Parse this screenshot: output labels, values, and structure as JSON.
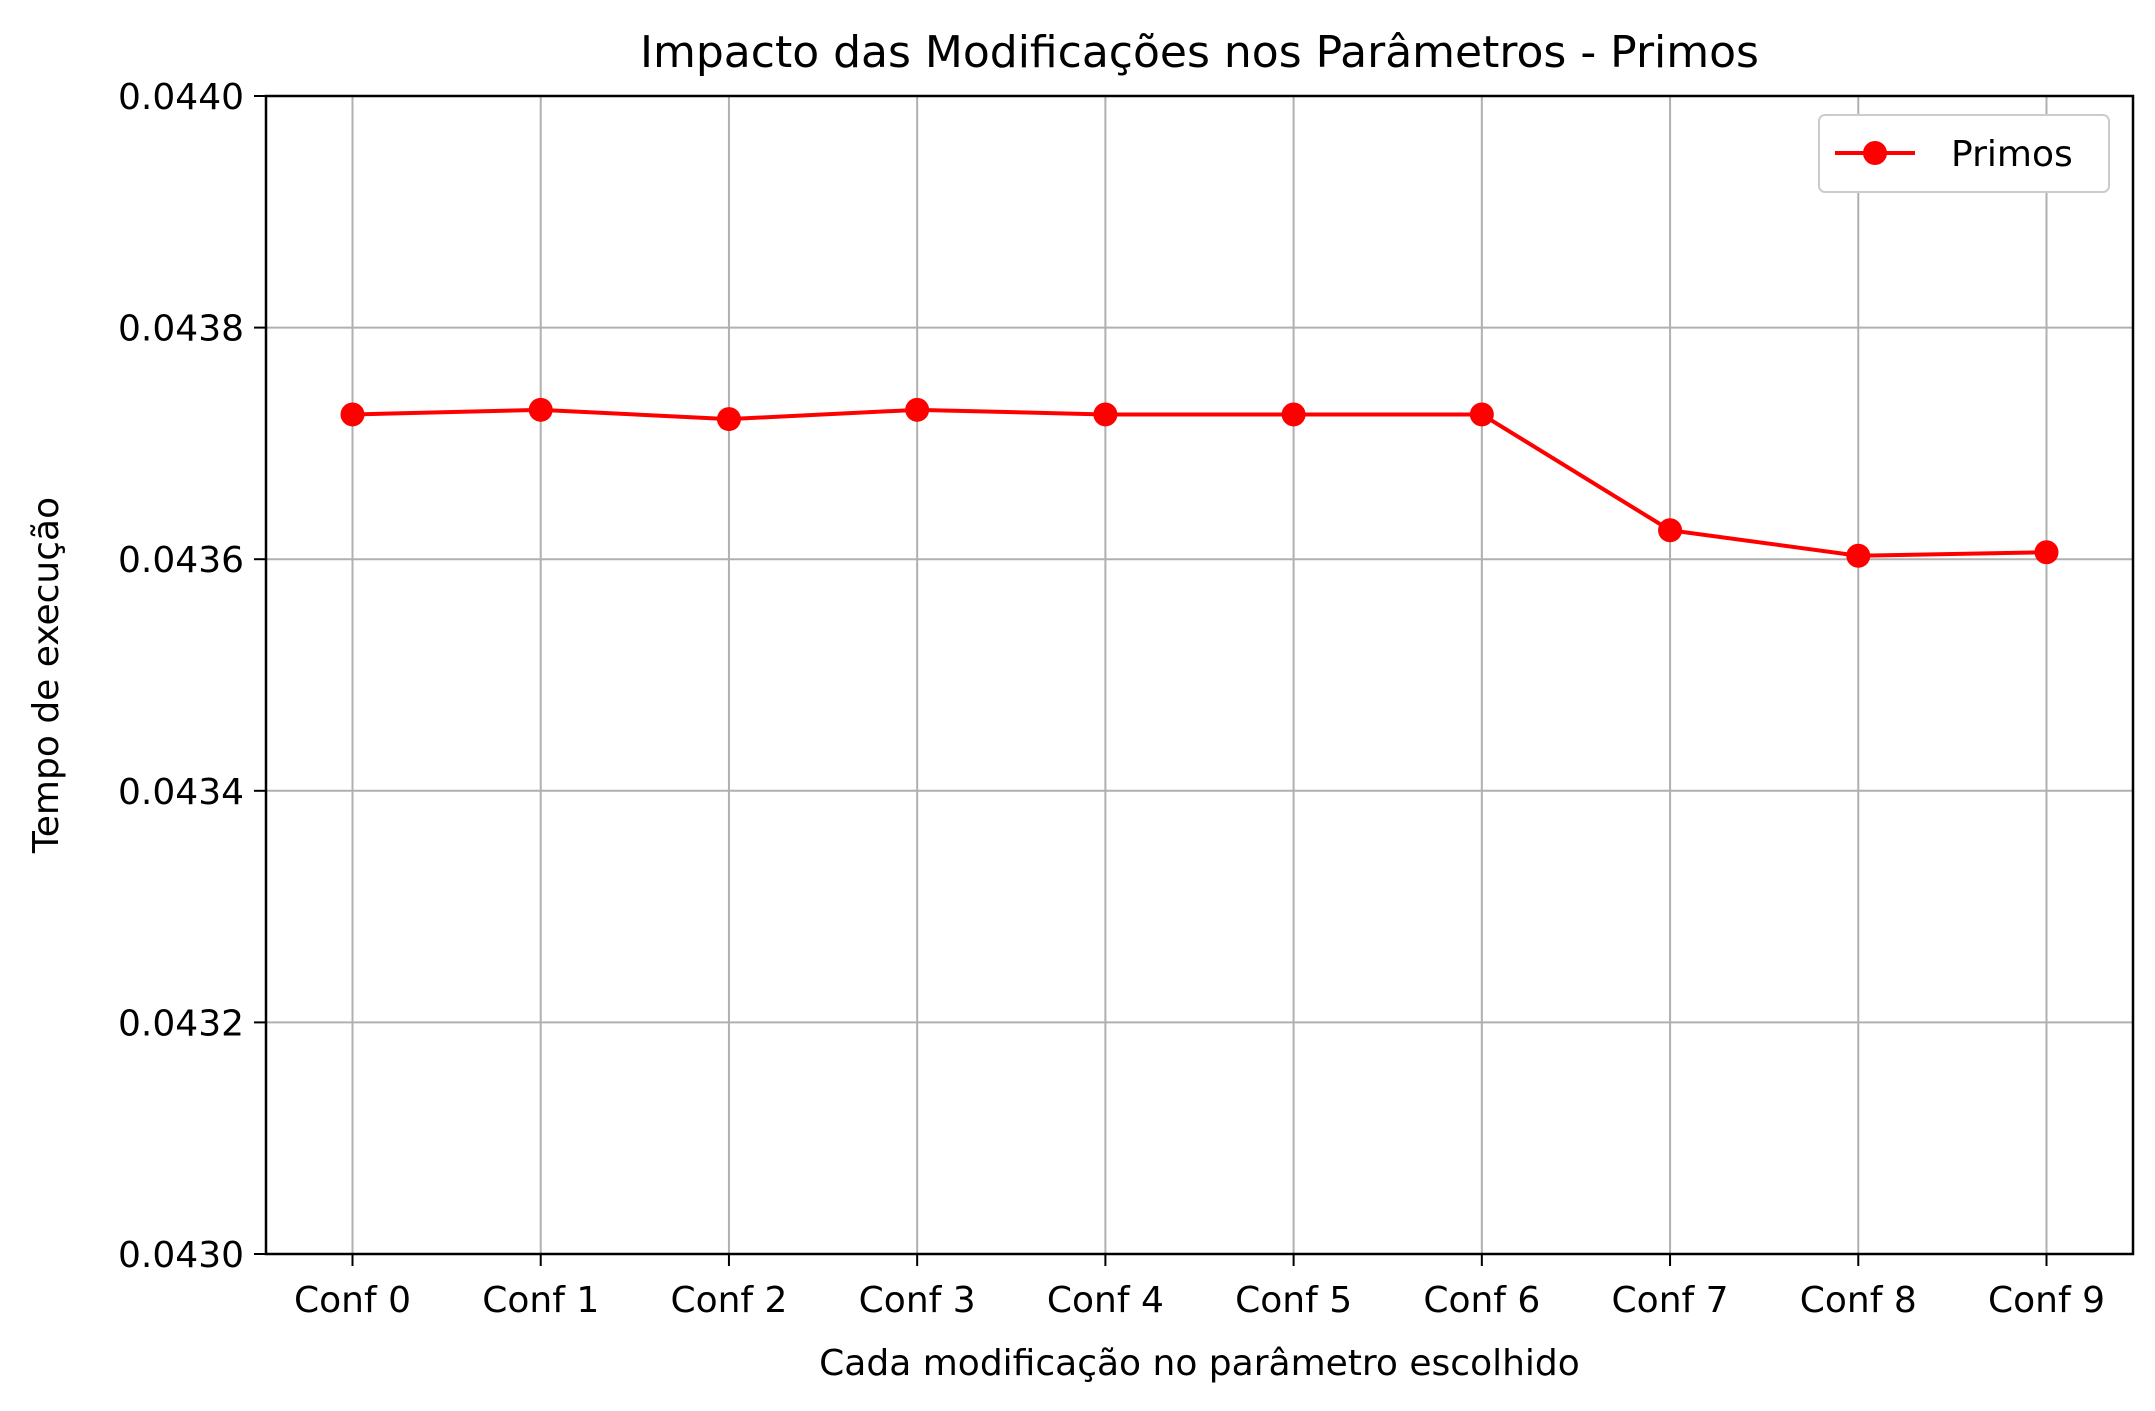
{
  "chart_data": {
    "type": "line",
    "title": "Impacto das Modificações nos Parâmetros - Primos",
    "xlabel": "Cada modificação no parâmetro escolhido",
    "ylabel": "Tempo de execução",
    "categories": [
      "Conf 0",
      "Conf 1",
      "Conf 2",
      "Conf 3",
      "Conf 4",
      "Conf 5",
      "Conf 6",
      "Conf 7",
      "Conf 8",
      "Conf 9"
    ],
    "series": [
      {
        "name": "Primos",
        "values": [
          0.043725,
          0.043729,
          0.043721,
          0.043729,
          0.043725,
          0.043725,
          0.043725,
          0.043625,
          0.043603,
          0.043606
        ],
        "color": "#ff0000",
        "marker": "circle"
      }
    ],
    "ylim": [
      0.043,
      0.044
    ],
    "yticks": [
      "0.0430",
      "0.0432",
      "0.0434",
      "0.0436",
      "0.0438",
      "0.0440"
    ],
    "grid": true,
    "legend_position": "top-right"
  }
}
